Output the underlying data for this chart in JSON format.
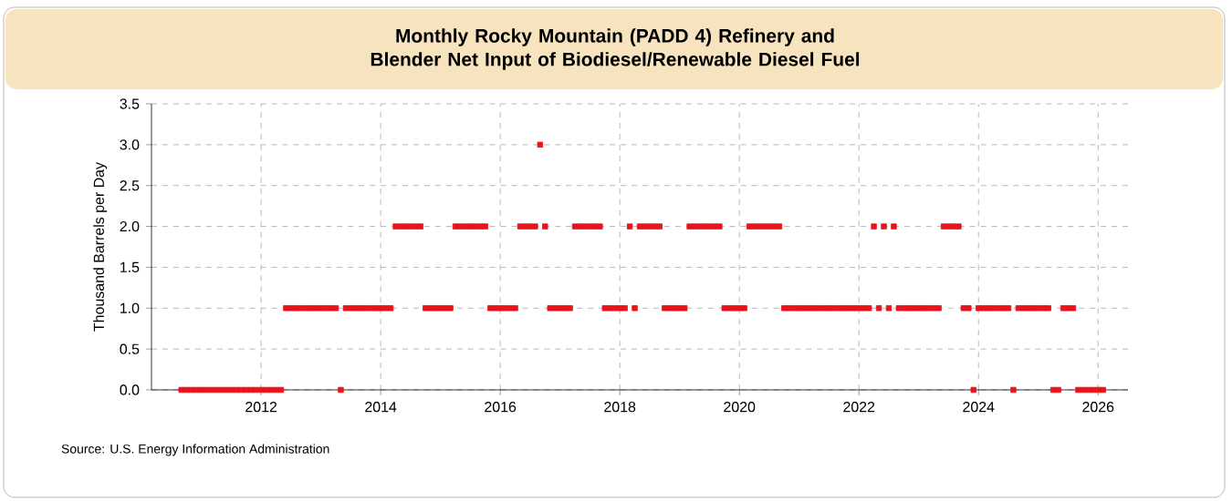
{
  "chart_data": {
    "type": "scatter",
    "title": "Monthly Rocky Mountain (PADD 4) Refinery and Blender Net Input of Biodiesel/Renewable Diesel Fuel",
    "ylabel": "Thousand Barrels per Day",
    "annotations": [
      "Source: U.S. Energy Information Administration"
    ],
    "x": [
      "2010-09",
      "2010-10",
      "2010-11",
      "2010-12",
      "2011-01",
      "2011-02",
      "2011-03",
      "2011-04",
      "2011-05",
      "2011-06",
      "2011-07",
      "2011-08",
      "2011-09",
      "2011-10",
      "2011-11",
      "2011-12",
      "2012-01",
      "2012-02",
      "2012-03",
      "2012-04",
      "2012-05",
      "2012-06",
      "2012-07",
      "2012-08",
      "2012-09",
      "2012-10",
      "2012-11",
      "2012-12",
      "2013-01",
      "2013-02",
      "2013-03",
      "2013-04",
      "2013-05",
      "2013-06",
      "2013-07",
      "2013-08",
      "2013-09",
      "2013-10",
      "2013-11",
      "2013-12",
      "2014-01",
      "2014-02",
      "2014-03",
      "2014-04",
      "2014-05",
      "2014-06",
      "2014-07",
      "2014-08",
      "2014-09",
      "2014-10",
      "2014-11",
      "2014-12",
      "2015-01",
      "2015-02",
      "2015-03",
      "2015-04",
      "2015-05",
      "2015-06",
      "2015-07",
      "2015-08",
      "2015-09",
      "2015-10",
      "2015-11",
      "2015-12",
      "2016-01",
      "2016-02",
      "2016-03",
      "2016-04",
      "2016-05",
      "2016-06",
      "2016-07",
      "2016-08",
      "2016-09",
      "2016-10",
      "2016-11",
      "2016-12",
      "2017-01",
      "2017-02",
      "2017-03",
      "2017-04",
      "2017-05",
      "2017-06",
      "2017-07",
      "2017-08",
      "2017-09",
      "2017-10",
      "2017-11",
      "2017-12",
      "2018-01",
      "2018-02",
      "2018-03",
      "2018-04",
      "2018-05",
      "2018-06",
      "2018-07",
      "2018-08",
      "2018-09",
      "2018-10",
      "2018-11",
      "2018-12",
      "2019-01",
      "2019-02",
      "2019-03",
      "2019-04",
      "2019-05",
      "2019-06",
      "2019-07",
      "2019-08",
      "2019-09",
      "2019-10",
      "2019-11",
      "2019-12",
      "2020-01",
      "2020-02",
      "2020-03",
      "2020-04",
      "2020-05",
      "2020-06",
      "2020-07",
      "2020-08",
      "2020-09",
      "2020-10",
      "2020-11",
      "2020-12",
      "2021-01",
      "2021-02",
      "2021-03",
      "2021-04",
      "2021-05",
      "2021-06",
      "2021-07",
      "2021-08",
      "2021-09",
      "2021-10",
      "2021-11",
      "2021-12",
      "2022-01",
      "2022-02",
      "2022-03",
      "2022-04",
      "2022-05",
      "2022-06",
      "2022-07",
      "2022-08",
      "2022-09",
      "2022-10",
      "2022-11",
      "2022-12",
      "2023-01",
      "2023-02",
      "2023-03",
      "2023-04",
      "2023-05",
      "2023-06",
      "2023-07",
      "2023-08",
      "2023-09",
      "2023-10",
      "2023-11",
      "2023-12",
      "2024-01",
      "2024-02",
      "2024-03",
      "2024-04",
      "2024-05",
      "2024-06",
      "2024-07",
      "2024-08",
      "2024-09",
      "2024-10",
      "2024-11",
      "2024-12",
      "2025-01",
      "2025-02",
      "2025-03",
      "2025-04",
      "2025-05",
      "2025-06",
      "2025-07",
      "2025-08",
      "2025-09",
      "2025-10",
      "2025-11",
      "2025-12",
      "2026-01",
      "2026-02"
    ],
    "values": [
      0,
      0,
      0,
      0,
      0,
      0,
      0,
      0,
      0,
      0,
      0,
      0,
      0,
      0,
      0,
      0,
      0,
      0,
      0,
      0,
      0,
      1,
      1,
      1,
      1,
      1,
      1,
      1,
      1,
      1,
      1,
      1,
      0,
      1,
      1,
      1,
      1,
      1,
      1,
      1,
      1,
      1,
      1,
      2,
      2,
      2,
      2,
      2,
      2,
      1,
      1,
      1,
      1,
      1,
      1,
      2,
      2,
      2,
      2,
      2,
      2,
      2,
      1,
      1,
      1,
      1,
      1,
      1,
      2,
      2,
      2,
      2,
      3,
      2,
      1,
      1,
      1,
      1,
      1,
      2,
      2,
      2,
      2,
      2,
      2,
      1,
      1,
      1,
      1,
      1,
      2,
      1,
      2,
      2,
      2,
      2,
      2,
      1,
      1,
      1,
      1,
      1,
      2,
      2,
      2,
      2,
      2,
      2,
      2,
      1,
      1,
      1,
      1,
      1,
      2,
      2,
      2,
      2,
      2,
      2,
      2,
      1,
      1,
      1,
      1,
      1,
      1,
      1,
      1,
      1,
      1,
      1,
      1,
      1,
      1,
      1,
      1,
      1,
      1,
      2,
      1,
      2,
      1,
      2,
      1,
      1,
      1,
      1,
      1,
      1,
      1,
      1,
      1,
      2,
      2,
      2,
      2,
      1,
      1,
      0,
      1,
      1,
      1,
      1,
      1,
      1,
      1,
      0,
      1,
      1,
      1,
      1,
      1,
      1,
      1,
      0,
      0,
      1,
      1,
      1,
      0,
      0,
      0,
      0,
      0,
      0
    ],
    "color": "#e8141b",
    "marker": "square",
    "xlim": [
      "2010-03",
      "2026-07"
    ],
    "xticks": [
      "2012",
      "2014",
      "2016",
      "2018",
      "2020",
      "2022",
      "2024",
      "2026"
    ],
    "ylim": [
      0,
      3.5
    ],
    "yticks": [
      {
        "value": 0,
        "label": "0.0"
      },
      {
        "value": 0.5,
        "label": "0.5"
      },
      {
        "value": 1,
        "label": "1.0"
      },
      {
        "value": 1.5,
        "label": "1.5"
      },
      {
        "value": 2,
        "label": "2.0"
      },
      {
        "value": 2.5,
        "label": "2.5"
      },
      {
        "value": 3,
        "label": "3.0"
      },
      {
        "value": 3.5,
        "label": "3.5"
      }
    ],
    "grid": true
  }
}
